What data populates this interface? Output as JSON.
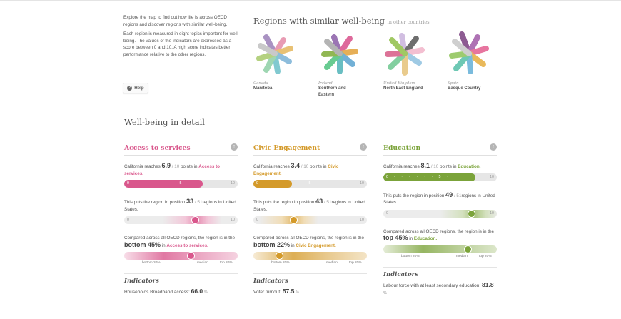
{
  "intro": {
    "p1": "Explore the map to find out how life is across OECD regions and discover regions with similar well-being.",
    "p2": "Each region is measured in eight topics important for well-being. The values of the indicators are expressed as a score between 0 and 10. A high score indicates better performance relative to the other regions.",
    "help_label": "Help",
    "help_icon": "question-icon"
  },
  "similar": {
    "title": "Regions with similar well-being",
    "subtitle": "in other countries",
    "regions": [
      {
        "country": "Canada",
        "name": "Manitoba"
      },
      {
        "country": "Ireland",
        "name": "Southern and Eastern"
      },
      {
        "country": "United Kingdom",
        "name": "North East England"
      },
      {
        "country": "Spain",
        "name": "Basque Country"
      }
    ]
  },
  "detail": {
    "title": "Well-being in detail",
    "columns": [
      {
        "title": "Access to services",
        "color": "#d9578c",
        "reach_prefix": "California reaches",
        "score": "6.9",
        "score_suffix": "/ 10",
        "points_in": "points in",
        "topic": "Access to services.",
        "score_value": 6.9,
        "scale_min": "0",
        "scale_mid": "5",
        "scale_max": "10",
        "position_prefix": "This puts the region in position",
        "position": "33",
        "position_total": "/ 51",
        "position_suffix": "regions in United States.",
        "position_fraction": 0.64,
        "compared_text": "Compared across all OECD regions, the region is in the",
        "group": "bottom 45%",
        "in": "in",
        "group_topic": "Access to services.",
        "group_fraction": 0.6,
        "dist_labels": {
          "left": "bottom 20%",
          "mid": "median",
          "right": "top 20%"
        },
        "indicators_title": "Indicators",
        "indicator_label": "Households Broadband access:",
        "indicator_value": "66.0",
        "indicator_unit": "%"
      },
      {
        "title": "Civic Engagement",
        "color": "#d49a2a",
        "reach_prefix": "California reaches",
        "score": "3.4",
        "score_suffix": "/ 10",
        "points_in": "points in",
        "topic": "Civic Engagement.",
        "score_value": 3.4,
        "scale_min": "0",
        "scale_mid": "5",
        "scale_max": "10",
        "position_prefix": "This puts the region in position",
        "position": "43",
        "position_total": "/ 51",
        "position_suffix": "regions in United States.",
        "position_fraction": 0.35,
        "compared_text": "Compared across all OECD regions, the region is in the",
        "group": "bottom 22%",
        "in": "in",
        "group_topic": "Civic Engagement.",
        "group_fraction": 0.21,
        "dist_labels": {
          "left": "bottom 20%",
          "mid": "median",
          "right": "top 20%"
        },
        "indicators_title": "Indicators",
        "indicator_label": "Voter turnout:",
        "indicator_value": "57.5",
        "indicator_unit": "%"
      },
      {
        "title": "Education",
        "color": "#7ba33a",
        "reach_prefix": "California reaches",
        "score": "8.1",
        "score_suffix": "/ 10",
        "points_in": "points in",
        "topic": "Education.",
        "score_value": 8.1,
        "scale_min": "0",
        "scale_mid": "5",
        "scale_max": "10",
        "position_prefix": "This puts the region in position",
        "position": "49",
        "position_total": "/ 51",
        "position_suffix": "regions in United States.",
        "position_fraction": 0.8,
        "compared_text": "Compared across all OECD regions, the region is in the",
        "group": "top 45%",
        "in": "in",
        "group_topic": "Education.",
        "group_fraction": 0.77,
        "dist_labels": {
          "left": "bottom 20%",
          "mid": "median",
          "right": "top 20%"
        },
        "indicators_title": "Indicators",
        "indicator_label": "Labour force with at least secondary education:",
        "indicator_value": "81.8",
        "indicator_unit": "%"
      }
    ]
  }
}
